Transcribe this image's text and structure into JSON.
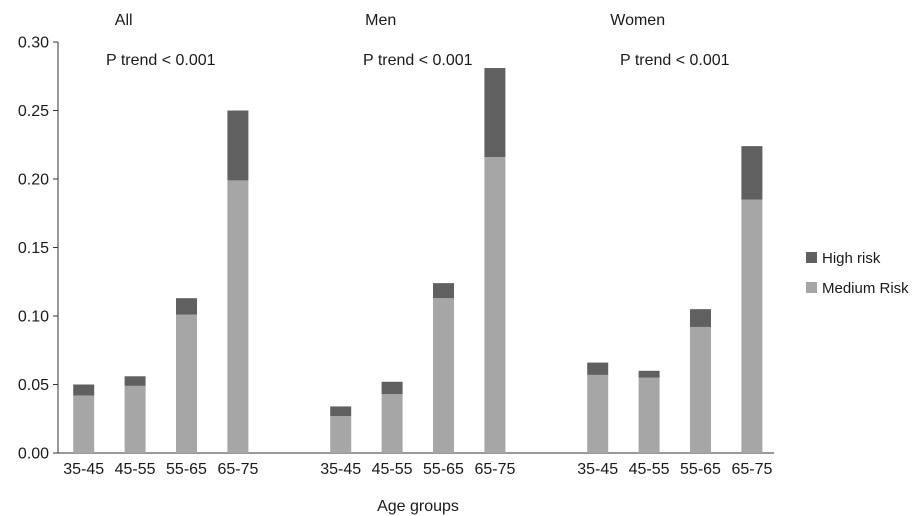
{
  "chart_data": {
    "type": "bar",
    "stacked": true,
    "xlabel": "Age groups",
    "ylabel": "",
    "ylim": [
      0,
      0.3
    ],
    "yticks": [
      "0.00",
      "0.05",
      "0.10",
      "0.15",
      "0.20",
      "0.25",
      "0.30"
    ],
    "grid": false,
    "legend_position": "right",
    "series": [
      {
        "name": "High risk",
        "color": "#606060"
      },
      {
        "name": "Medium Risk",
        "color": "#a6a6a6"
      }
    ],
    "groups": [
      {
        "title": "All",
        "annotation": "P trend < 0.001",
        "categories": [
          "35-45",
          "45-55",
          "55-65",
          "65-75"
        ],
        "medium": [
          0.042,
          0.049,
          0.101,
          0.199
        ],
        "high": [
          0.008,
          0.007,
          0.012,
          0.051
        ]
      },
      {
        "title": "Men",
        "annotation": "P trend < 0.001",
        "categories": [
          "35-45",
          "45-55",
          "55-65",
          "65-75"
        ],
        "medium": [
          0.027,
          0.043,
          0.113,
          0.216
        ],
        "high": [
          0.007,
          0.009,
          0.011,
          0.065
        ]
      },
      {
        "title": "Women",
        "annotation": "P trend < 0.001",
        "categories": [
          "35-45",
          "45-55",
          "55-65",
          "65-75"
        ],
        "medium": [
          0.057,
          0.055,
          0.092,
          0.185
        ],
        "high": [
          0.009,
          0.005,
          0.013,
          0.039
        ]
      }
    ]
  }
}
